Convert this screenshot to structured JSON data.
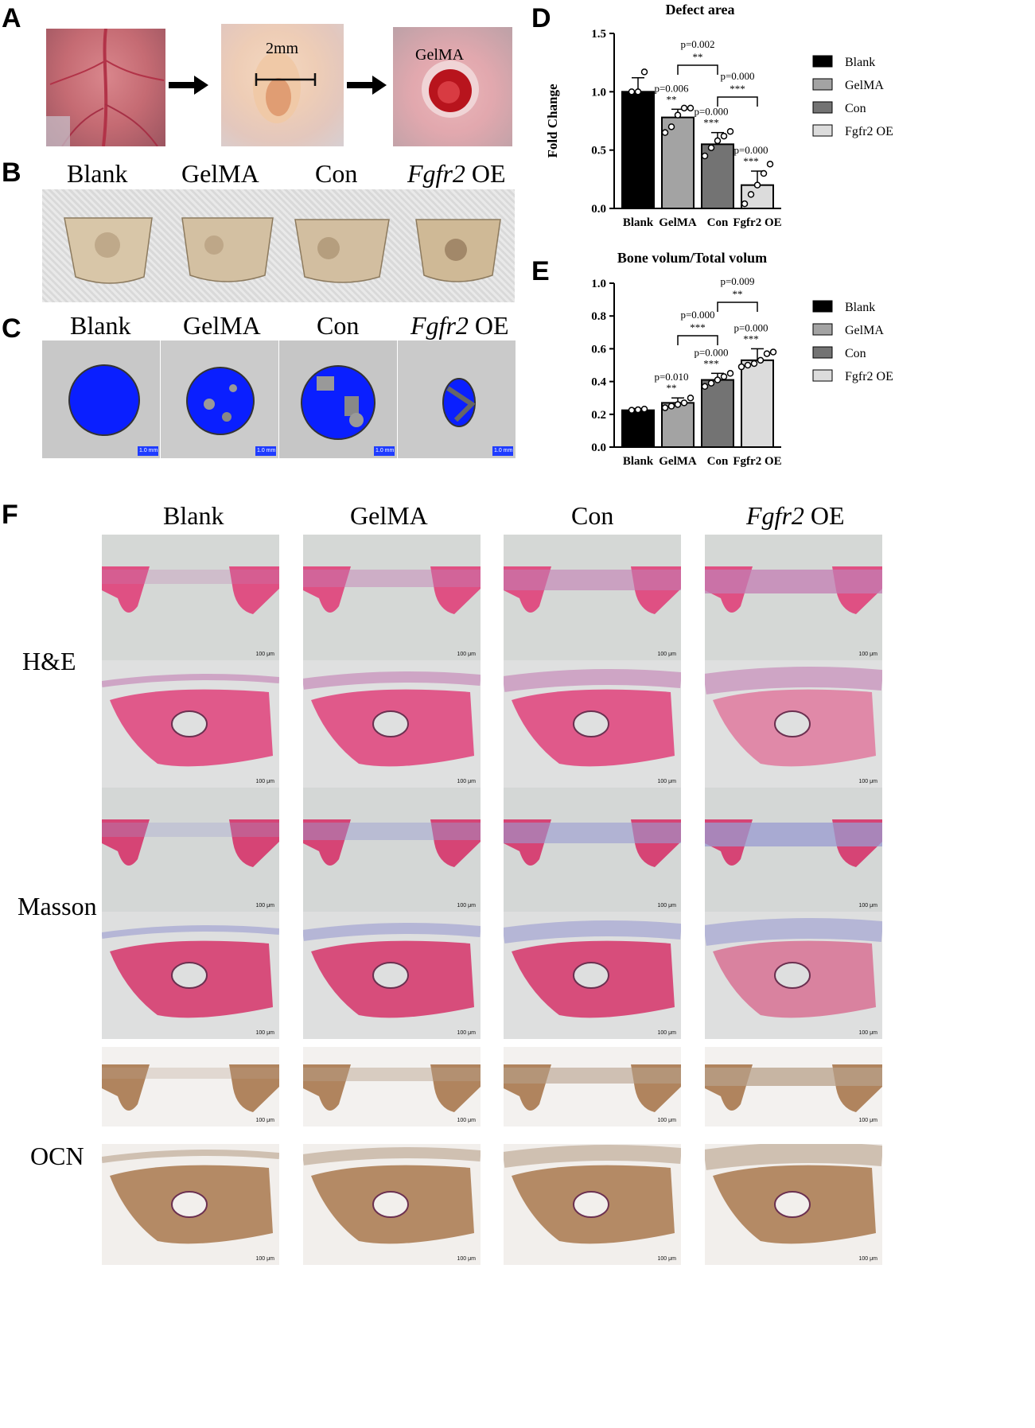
{
  "panels": {
    "A": {
      "letter": "A",
      "scale_text": "2mm",
      "material_text": "GelMA"
    },
    "B": {
      "letter": "B",
      "groups": [
        {
          "parts": [
            {
              "text": "Blank",
              "italic": false
            }
          ]
        },
        {
          "parts": [
            {
              "text": "GelMA",
              "italic": false
            }
          ]
        },
        {
          "parts": [
            {
              "text": "Con",
              "italic": false
            }
          ]
        },
        {
          "parts": [
            {
              "text": "Fgfr2",
              "italic": true
            },
            {
              "text": " OE",
              "italic": false
            }
          ]
        }
      ]
    },
    "C": {
      "letter": "C",
      "groups": [
        {
          "parts": [
            {
              "text": "Blank",
              "italic": false
            }
          ]
        },
        {
          "parts": [
            {
              "text": "GelMA",
              "italic": false
            }
          ]
        },
        {
          "parts": [
            {
              "text": "Con",
              "italic": false
            }
          ]
        },
        {
          "parts": [
            {
              "text": "Fgfr2",
              "italic": true
            },
            {
              "text": " OE",
              "italic": false
            }
          ]
        }
      ],
      "scalebar_text": "1.0 mm"
    },
    "D": {
      "letter": "D"
    },
    "E": {
      "letter": "E"
    },
    "F": {
      "letter": "F",
      "groups": [
        {
          "parts": [
            {
              "text": "Blank",
              "italic": false
            }
          ]
        },
        {
          "parts": [
            {
              "text": "GelMA",
              "italic": false
            }
          ]
        },
        {
          "parts": [
            {
              "text": "Con",
              "italic": false
            }
          ]
        },
        {
          "parts": [
            {
              "text": "Fgfr2",
              "italic": true
            },
            {
              "text": " OE",
              "italic": false
            }
          ]
        }
      ],
      "rows": [
        "H&E",
        "Masson",
        "OCN"
      ],
      "scalebar_text": "100 μm"
    }
  },
  "colors": {
    "blank_bar": "#000000",
    "gelma_bar": "#a3a3a3",
    "con_bar": "#737373",
    "fgfr2_bar": "#dcdcdc",
    "defect_blue": "#0a1fff",
    "he_pink": "#e0417a",
    "masson_pink": "#d6346a",
    "ocn_brown": "#a9784e"
  },
  "chart_data": [
    {
      "type": "bar",
      "title": "Defect area",
      "ylabel": "Fold Change",
      "categories": [
        "Blank",
        "GelMA",
        "Con",
        "Fgfr2 OE"
      ],
      "values": [
        1.0,
        0.78,
        0.55,
        0.2
      ],
      "errors": [
        0.12,
        0.07,
        0.1,
        0.12
      ],
      "points": [
        [
          1.0,
          1.0,
          1.17
        ],
        [
          0.65,
          0.7,
          0.8,
          0.86,
          0.86
        ],
        [
          0.45,
          0.52,
          0.58,
          0.62,
          0.66
        ],
        [
          0.04,
          0.12,
          0.2,
          0.3,
          0.38
        ]
      ],
      "ylim": [
        0,
        1.5
      ],
      "yticks": [
        "0.0",
        "0.5",
        "1.0",
        "1.5"
      ],
      "legend": [
        "Blank",
        "GelMA",
        "Con",
        "Fgfr2 OE"
      ],
      "legend_position": "right",
      "bar_annotations": [
        {
          "category": "GelMA",
          "p": "p=0.006",
          "stars": "**"
        },
        {
          "category": "Con",
          "p": "p=0.000",
          "stars": "***"
        },
        {
          "category": "Fgfr2 OE",
          "p": "p=0.000",
          "stars": "***"
        }
      ],
      "brackets": [
        {
          "from": "GelMA",
          "to": "Con",
          "p": "p=0.002",
          "stars": "**"
        },
        {
          "from": "Con",
          "to": "Fgfr2 OE",
          "p": "p=0.000",
          "stars": "***"
        }
      ]
    },
    {
      "type": "bar",
      "title": "Bone volum/Total volum",
      "ylabel": "",
      "categories": [
        "Blank",
        "GelMA",
        "Con",
        "Fgfr2 OE"
      ],
      "values": [
        0.225,
        0.27,
        0.41,
        0.53
      ],
      "errors": [
        0.01,
        0.03,
        0.04,
        0.07
      ],
      "points": [
        [
          0.225,
          0.228,
          0.232
        ],
        [
          0.24,
          0.25,
          0.26,
          0.27,
          0.3
        ],
        [
          0.37,
          0.39,
          0.41,
          0.43,
          0.45
        ],
        [
          0.49,
          0.5,
          0.51,
          0.53,
          0.57,
          0.58
        ]
      ],
      "ylim": [
        0,
        1.0
      ],
      "yticks": [
        "0.0",
        "0.2",
        "0.4",
        "0.6",
        "0.8",
        "1.0"
      ],
      "legend": [
        "Blank",
        "GelMA",
        "Con",
        "Fgfr2 OE"
      ],
      "legend_position": "right",
      "bar_annotations": [
        {
          "category": "GelMA",
          "p": "p=0.010",
          "stars": "**"
        },
        {
          "category": "Con",
          "p": "p=0.000",
          "stars": "***"
        },
        {
          "category": "Fgfr2 OE",
          "p": "p=0.000",
          "stars": "***"
        }
      ],
      "brackets": [
        {
          "from": "GelMA",
          "to": "Con",
          "p": "p=0.000",
          "stars": "***"
        },
        {
          "from": "Con",
          "to": "Fgfr2 OE",
          "p": "p=0.009",
          "stars": "**"
        }
      ]
    }
  ]
}
